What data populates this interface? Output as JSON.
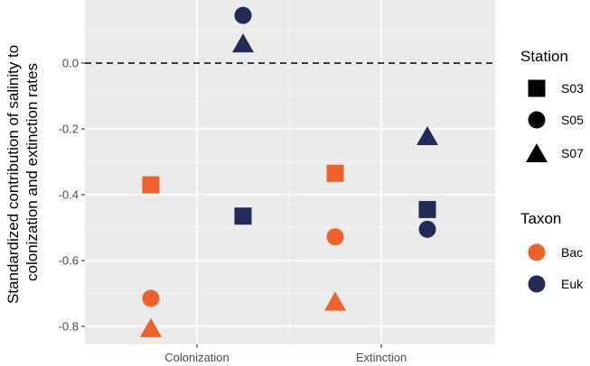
{
  "chart_data": {
    "type": "scatter",
    "categories": [
      "Colonization",
      "Extinction"
    ],
    "ylabel": [
      "Standardized contribution of salinity to",
      "colonization and extinction rates"
    ],
    "xlabel": "",
    "ylim": [
      -0.85,
      0.19
    ],
    "yticks": [
      0.0,
      -0.2,
      -0.4,
      -0.6,
      -0.8
    ],
    "ytick_labels": [
      "0.0",
      "-0.2",
      "-0.4",
      "-0.6",
      "-0.8"
    ],
    "reference_line": {
      "y": 0.0,
      "style": "dashed"
    },
    "grid": true,
    "legend_position": "right",
    "colors": {
      "Bac": "#f0612a",
      "Euk": "#222a55"
    },
    "legends": [
      {
        "title": "Station",
        "entries": [
          {
            "label": "S03",
            "shape": "square"
          },
          {
            "label": "S05",
            "shape": "circle"
          },
          {
            "label": "S07",
            "shape": "triangle"
          }
        ]
      },
      {
        "title": "Taxon",
        "entries": [
          {
            "label": "Bac",
            "color": "#f0612a"
          },
          {
            "label": "Euk",
            "color": "#222a55"
          }
        ]
      }
    ],
    "points": [
      {
        "category": "Colonization",
        "taxon": "Bac",
        "station": "S03",
        "y": -0.37
      },
      {
        "category": "Colonization",
        "taxon": "Bac",
        "station": "S05",
        "y": -0.715
      },
      {
        "category": "Colonization",
        "taxon": "Bac",
        "station": "S07",
        "y": -0.805
      },
      {
        "category": "Colonization",
        "taxon": "Euk",
        "station": "S03",
        "y": -0.465
      },
      {
        "category": "Colonization",
        "taxon": "Euk",
        "station": "S05",
        "y": 0.145
      },
      {
        "category": "Colonization",
        "taxon": "Euk",
        "station": "S07",
        "y": 0.06
      },
      {
        "category": "Extinction",
        "taxon": "Bac",
        "station": "S03",
        "y": -0.335
      },
      {
        "category": "Extinction",
        "taxon": "Bac",
        "station": "S05",
        "y": -0.528
      },
      {
        "category": "Extinction",
        "taxon": "Bac",
        "station": "S07",
        "y": -0.725
      },
      {
        "category": "Extinction",
        "taxon": "Euk",
        "station": "S03",
        "y": -0.445
      },
      {
        "category": "Extinction",
        "taxon": "Euk",
        "station": "S05",
        "y": -0.505
      },
      {
        "category": "Extinction",
        "taxon": "Euk",
        "station": "S07",
        "y": -0.222
      }
    ]
  }
}
